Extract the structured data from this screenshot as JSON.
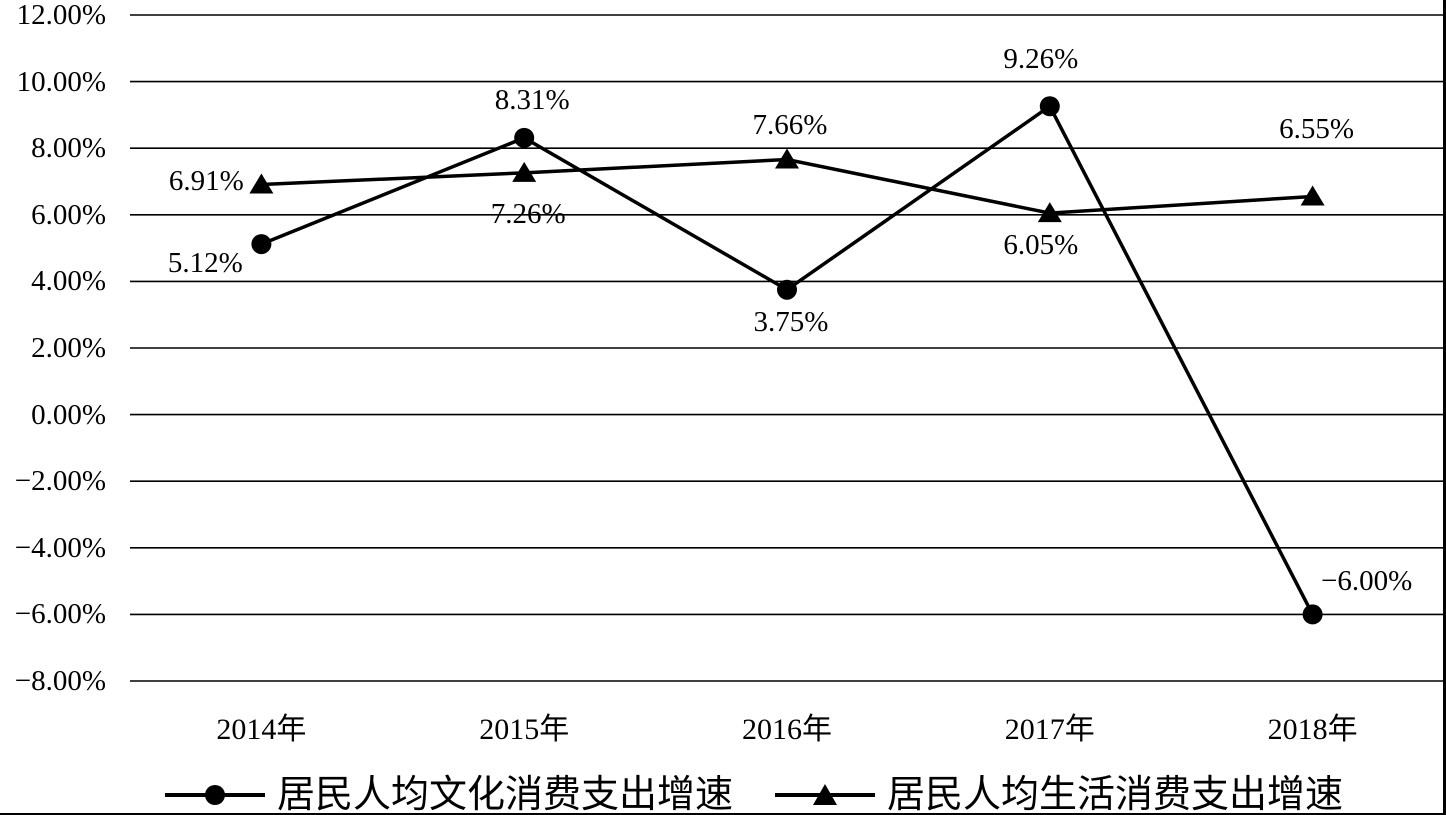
{
  "figure": {
    "background_color": "#ffffff",
    "ink_color": "#000000"
  },
  "chart_data": {
    "type": "line",
    "title": "",
    "xlabel": "",
    "ylabel": "",
    "grid": true,
    "legend_position": "bottom",
    "categories": [
      "2014年",
      "2015年",
      "2016年",
      "2017年",
      "2018年"
    ],
    "y_axis": {
      "min": -8,
      "max": 12,
      "step": 2,
      "tick_labels": [
        "12.00%",
        "10.00%",
        "8.00%",
        "6.00%",
        "4.00%",
        "2.00%",
        "0.00%",
        "−2.00%",
        "−4.00%",
        "−6.00%",
        "−8.00%"
      ]
    },
    "series": [
      {
        "name": "居民人均文化消费支出增速",
        "marker": "circle",
        "values": [
          5.12,
          8.31,
          3.75,
          9.26,
          -6.0
        ],
        "point_labels": [
          "5.12%",
          "8.31%",
          "3.75%",
          "9.26%",
          "−6.00%"
        ],
        "point_label_offsets": [
          [
            -56,
            19
          ],
          [
            8,
            -38
          ],
          [
            4,
            32
          ],
          [
            -9,
            -47
          ],
          [
            54,
            -33
          ]
        ]
      },
      {
        "name": "居民人均生活消费支出增速",
        "marker": "triangle",
        "values": [
          6.91,
          7.26,
          7.66,
          6.05,
          6.55
        ],
        "point_labels": [
          "6.91%",
          "7.26%",
          "7.66%",
          "6.05%",
          "6.55%"
        ],
        "point_label_offsets": [
          [
            -55,
            -3
          ],
          [
            4,
            41
          ],
          [
            3,
            -35
          ],
          [
            -9,
            32
          ],
          [
            4,
            -67
          ]
        ]
      }
    ]
  }
}
